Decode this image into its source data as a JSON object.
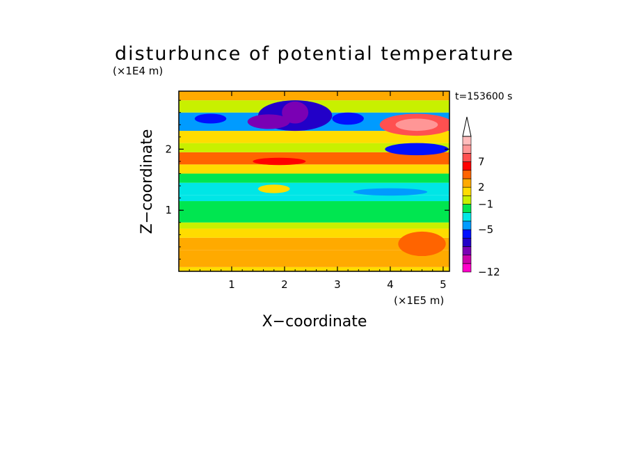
{
  "chart_data": {
    "type": "heatmap",
    "title": "disturbunce of potential temperature",
    "xlabel": "X−coordinate",
    "ylabel": "Z−coordinate",
    "x_unit": "(×1E5 m)",
    "y_unit": "(×1E4 m)",
    "time_label": "t=153600 s",
    "xlim": [
      0,
      5.12
    ],
    "ylim": [
      0,
      2.95
    ],
    "x_ticks": [
      {
        "value": 1,
        "label": "1"
      },
      {
        "value": 2,
        "label": "2"
      },
      {
        "value": 3,
        "label": "3"
      },
      {
        "value": 4,
        "label": "4"
      },
      {
        "value": 5,
        "label": "5"
      }
    ],
    "y_ticks": [
      {
        "value": 1,
        "label": "1"
      },
      {
        "value": 2,
        "label": "2"
      }
    ],
    "colorbar": {
      "colors": [
        "#ff00c8",
        "#cc00aa",
        "#7a00b4",
        "#2200c8",
        "#0010ff",
        "#009bff",
        "#00e6e6",
        "#00e650",
        "#c8f000",
        "#ffdc00",
        "#ffaa00",
        "#ff6400",
        "#ff0000",
        "#ff5050",
        "#ff9696",
        "#ffbcbc"
      ],
      "labels": [
        {
          "level": 0,
          "text": "−12"
        },
        {
          "level": 5,
          "text": "−5"
        },
        {
          "level": 8,
          "text": "−1"
        },
        {
          "level": 10,
          "text": "2"
        },
        {
          "level": 13,
          "text": "7"
        }
      ],
      "extend": "max"
    },
    "bands": [
      {
        "z0": 0.0,
        "z1": 0.07,
        "level": 9
      },
      {
        "z0": 0.07,
        "z1": 0.35,
        "level": 10
      },
      {
        "z0": 0.35,
        "z1": 0.55,
        "level": 10
      },
      {
        "z0": 0.55,
        "z1": 0.7,
        "level": 9
      },
      {
        "z0": 0.7,
        "z1": 0.8,
        "level": 8
      },
      {
        "z0": 0.8,
        "z1": 1.15,
        "level": 7
      },
      {
        "z0": 1.15,
        "z1": 1.25,
        "level": 6
      },
      {
        "z0": 1.25,
        "z1": 1.45,
        "level": 6
      },
      {
        "z0": 1.45,
        "z1": 1.6,
        "level": 7
      },
      {
        "z0": 1.6,
        "z1": 1.75,
        "level": 9
      },
      {
        "z0": 1.75,
        "z1": 1.95,
        "level": 11
      },
      {
        "z0": 1.95,
        "z1": 2.1,
        "level": 8
      },
      {
        "z0": 2.1,
        "z1": 2.3,
        "level": 9
      },
      {
        "z0": 2.3,
        "z1": 2.6,
        "level": 5
      },
      {
        "z0": 2.6,
        "z1": 2.8,
        "level": 8
      },
      {
        "z0": 2.8,
        "z1": 2.95,
        "level": 10
      }
    ],
    "features": [
      {
        "x": 1.8,
        "z": 1.35,
        "rx": 0.3,
        "rz": 0.07,
        "level": 9
      },
      {
        "x": 2.2,
        "z": 2.55,
        "rx": 0.7,
        "rz": 0.25,
        "level": 3
      },
      {
        "x": 1.7,
        "z": 2.45,
        "rx": 0.4,
        "rz": 0.12,
        "level": 2
      },
      {
        "x": 2.2,
        "z": 2.6,
        "rx": 0.25,
        "rz": 0.18,
        "level": 2
      },
      {
        "x": 4.5,
        "z": 2.4,
        "rx": 0.7,
        "rz": 0.18,
        "level": 13
      },
      {
        "x": 4.5,
        "z": 2.4,
        "rx": 0.4,
        "rz": 0.1,
        "level": 14
      },
      {
        "x": 4.5,
        "z": 2.0,
        "rx": 0.6,
        "rz": 0.1,
        "level": 4
      },
      {
        "x": 4.0,
        "z": 1.3,
        "rx": 0.7,
        "rz": 0.06,
        "level": 5
      },
      {
        "x": 1.9,
        "z": 1.8,
        "rx": 0.5,
        "rz": 0.06,
        "level": 12
      },
      {
        "x": 0.6,
        "z": 2.5,
        "rx": 0.3,
        "rz": 0.08,
        "level": 4
      },
      {
        "x": 3.2,
        "z": 2.5,
        "rx": 0.3,
        "rz": 0.1,
        "level": 4
      },
      {
        "x": 4.6,
        "z": 0.45,
        "rx": 0.45,
        "rz": 0.2,
        "level": 11
      }
    ]
  }
}
